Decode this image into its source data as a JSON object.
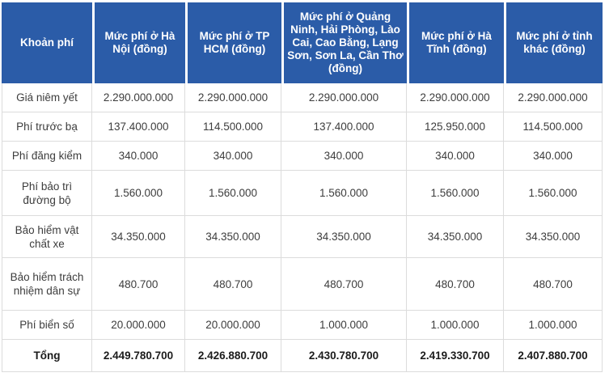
{
  "colors": {
    "header_bg": "#2b5ca8",
    "header_text": "#ffffff",
    "body_text": "#3d3d3d",
    "total_text": "#1b1b1b",
    "grid_border": "#dcdcdc"
  },
  "chart_data": {
    "type": "table",
    "title": "",
    "layout": {
      "grid": true,
      "header_row": true,
      "total_row_bold": true
    },
    "columns": [
      "Khoản phí",
      "Mức phí ở Hà Nội (đồng)",
      "Mức phí ở TP HCM (đồng)",
      "Mức phí ở Quảng Ninh, Hải Phòng, Lào Cai, Cao Bằng, Lạng Sơn, Sơn La, Cần Thơ (đồng)",
      "Mức phí ở Hà Tĩnh (đồng)",
      "Mức phí ở tỉnh khác (đồng)"
    ],
    "rows": [
      {
        "label": "Giá niêm yết",
        "values": [
          "2.290.000.000",
          "2.290.000.000",
          "2.290.000.000",
          "2.290.000.000",
          "2.290.000.000"
        ]
      },
      {
        "label": "Phí trước bạ",
        "values": [
          "137.400.000",
          "114.500.000",
          "137.400.000",
          "125.950.000",
          "114.500.000"
        ]
      },
      {
        "label": "Phí đăng kiểm",
        "values": [
          "340.000",
          "340.000",
          "340.000",
          "340.000",
          "340.000"
        ]
      },
      {
        "label": "Phí bảo trì đường bộ",
        "values": [
          "1.560.000",
          "1.560.000",
          "1.560.000",
          "1.560.000",
          "1.560.000"
        ]
      },
      {
        "label": "Bảo hiểm vật chất xe",
        "values": [
          "34.350.000",
          "34.350.000",
          "34.350.000",
          "34.350.000",
          "34.350.000"
        ]
      },
      {
        "label": "Bảo hiểm trách nhiệm dân sự",
        "values": [
          "480.700",
          "480.700",
          "480.700",
          "480.700",
          "480.700"
        ]
      },
      {
        "label": "Phí biển số",
        "values": [
          "20.000.000",
          "20.000.000",
          "1.000.000",
          "1.000.000",
          "1.000.000"
        ]
      }
    ],
    "total_row": {
      "label": "Tổng",
      "values": [
        "2.449.780.700",
        "2.426.880.700",
        "2.430.780.700",
        "2.419.330.700",
        "2.407.880.700"
      ]
    }
  }
}
